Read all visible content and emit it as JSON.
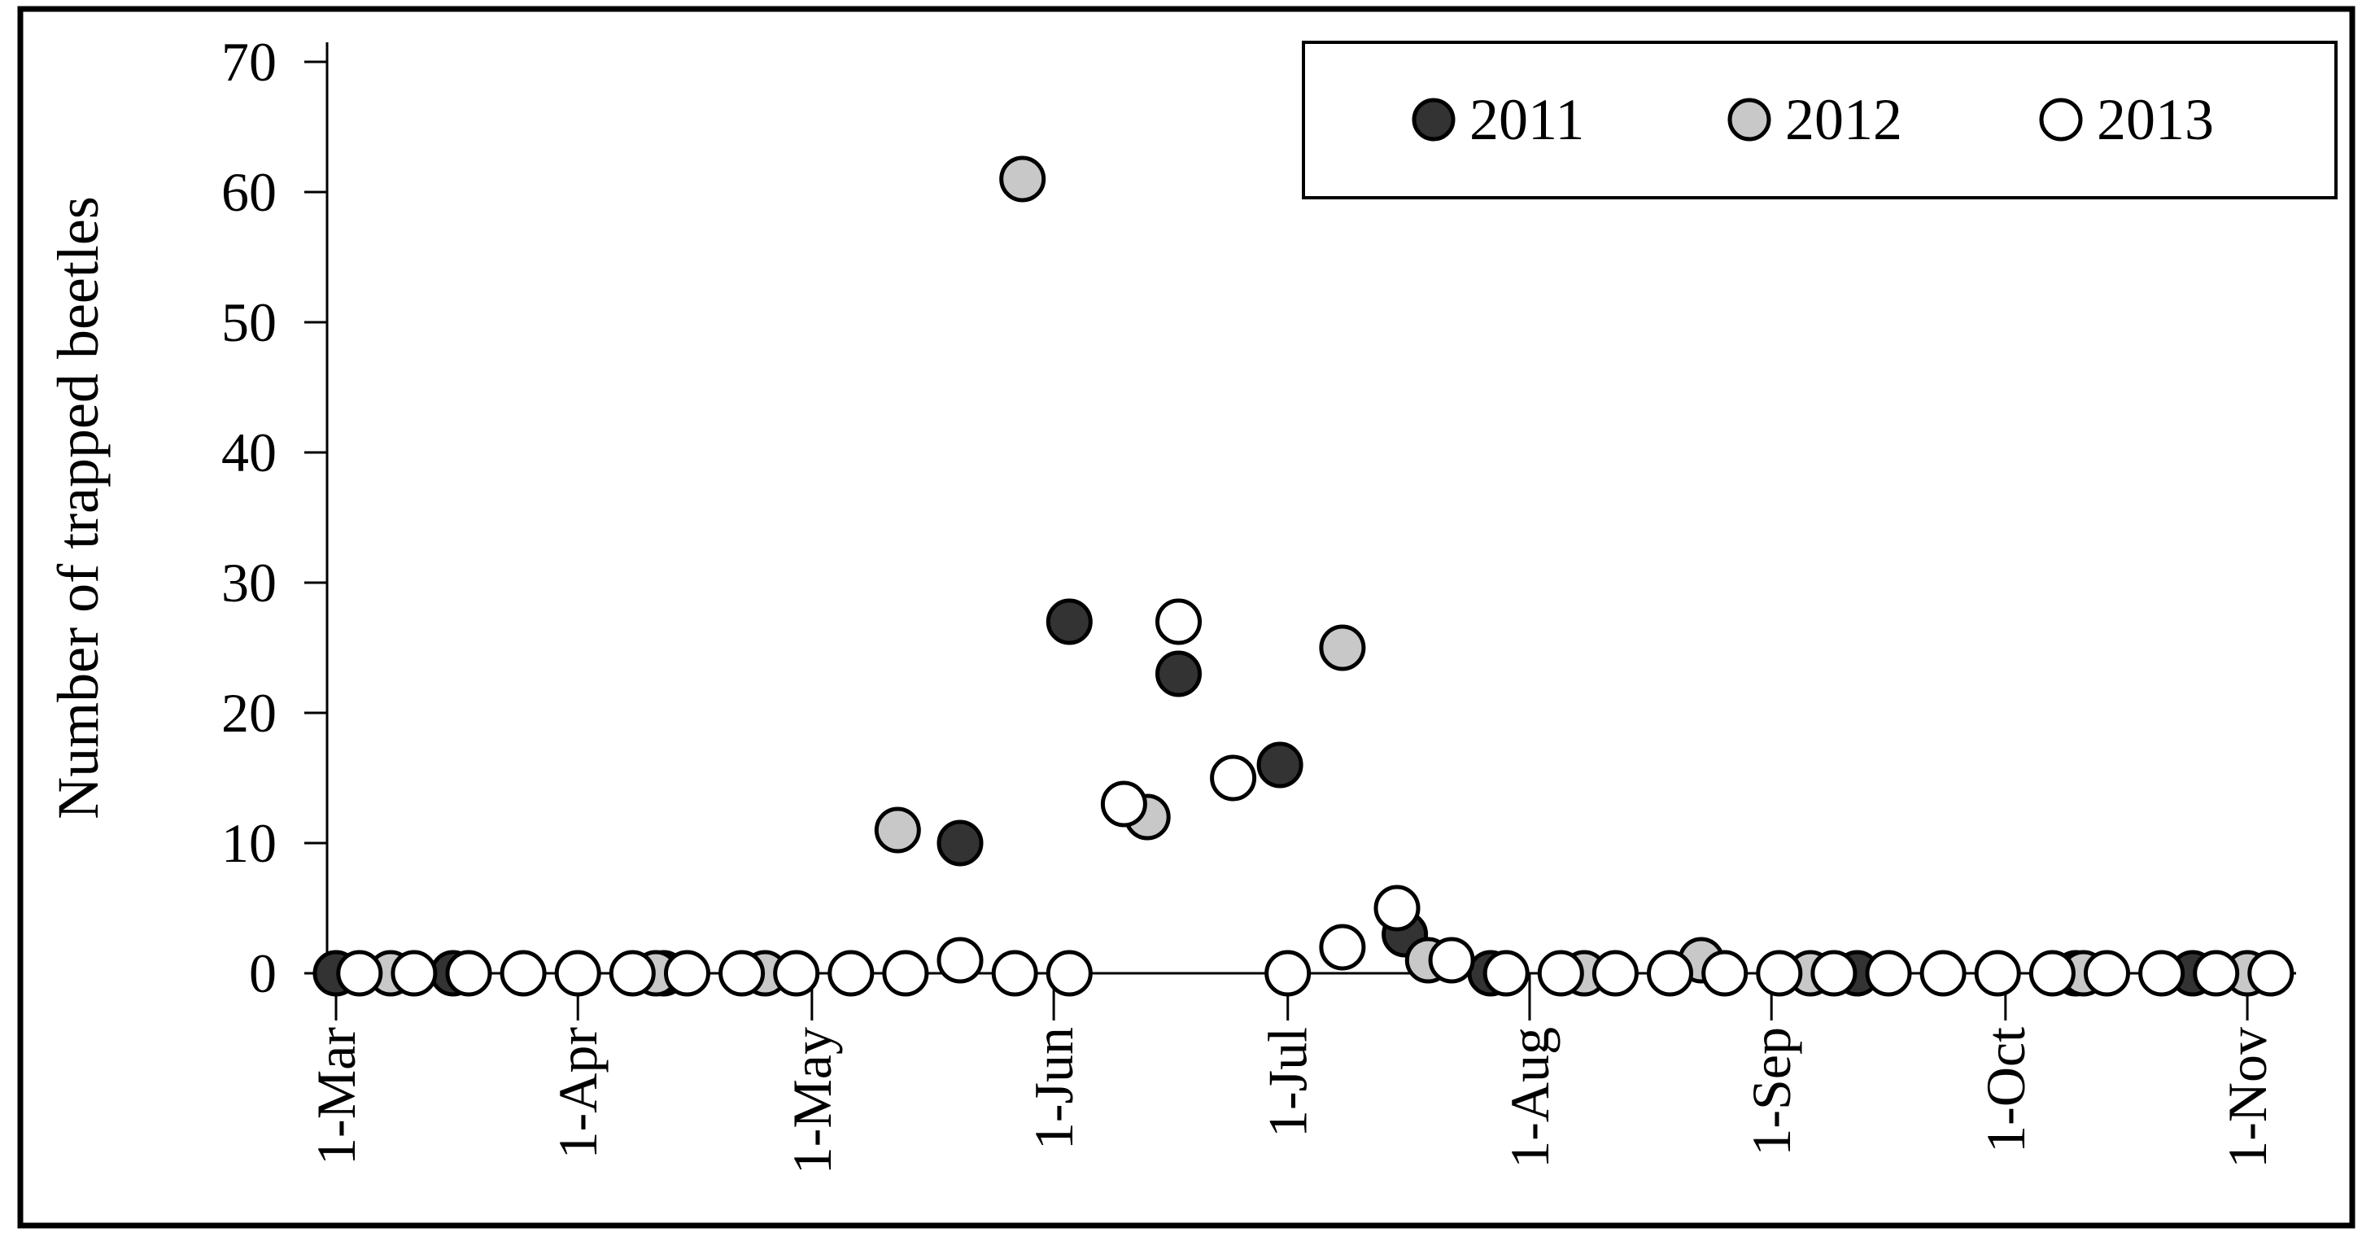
{
  "figure": {
    "background_color": "#ffffff",
    "border_color": "#000000"
  },
  "chart_data": {
    "type": "scatter",
    "title": "",
    "xlabel": "",
    "ylabel": "Number of trapped beetles",
    "grid": false,
    "legend_position": "top-right",
    "marker_shape": "circle",
    "y_ticks": [
      0,
      10,
      20,
      30,
      40,
      50,
      60,
      70
    ],
    "ylim": [
      0,
      70
    ],
    "x_ticks": {
      "labels": [
        "1-Mar",
        "1-Apr",
        "1-May",
        "1-Jun",
        "1-Jul",
        "1-Aug",
        "1-Sep",
        "1-Oct",
        "1-Nov"
      ],
      "day_offsets": [
        0,
        31,
        61,
        92,
        122,
        153,
        184,
        214,
        245
      ]
    },
    "xlim_days": [
      -2,
      252
    ],
    "point_format": [
      "date",
      "day_offset_from_1-Mar",
      "count"
    ],
    "series": [
      {
        "name": "2011",
        "fill": "#333333",
        "stroke": "#000000",
        "points": [
          [
            "1-Mar",
            0,
            0
          ],
          [
            "16-Mar",
            15,
            0
          ],
          [
            "12-Apr",
            42,
            0
          ],
          [
            "20-May",
            80,
            10
          ],
          [
            "3-Jun",
            94,
            27
          ],
          [
            "17-Jun",
            108,
            23
          ],
          [
            "30-Jun",
            121,
            16
          ],
          [
            "16-Jul",
            137,
            3
          ],
          [
            "27-Jul",
            148,
            0
          ],
          [
            "12-Sep",
            195,
            0
          ],
          [
            "10-Oct",
            223,
            0
          ],
          [
            "25-Oct",
            238,
            0
          ]
        ]
      },
      {
        "name": "2012",
        "fill": "#c8c8c8",
        "stroke": "#000000",
        "points": [
          [
            "8-Mar",
            7,
            0
          ],
          [
            "11-Apr",
            41,
            0
          ],
          [
            "25-Apr",
            55,
            0
          ],
          [
            "12-May",
            72,
            11
          ],
          [
            "28-May",
            88,
            61
          ],
          [
            "13-Jun",
            104,
            12
          ],
          [
            "8-Jul",
            129,
            25
          ],
          [
            "19-Jul",
            140,
            1
          ],
          [
            "8-Aug",
            160,
            0
          ],
          [
            "23-Aug",
            175,
            1
          ],
          [
            "6-Sep",
            189,
            0
          ],
          [
            "11-Oct",
            224,
            0
          ],
          [
            "1-Nov",
            245,
            0
          ]
        ]
      },
      {
        "name": "2013",
        "fill": "#ffffff",
        "stroke": "#000000",
        "points": [
          [
            "4-Mar",
            3,
            0
          ],
          [
            "11-Mar",
            10,
            0
          ],
          [
            "18-Mar",
            17,
            0
          ],
          [
            "25-Mar",
            24,
            0
          ],
          [
            "1-Apr",
            31,
            0
          ],
          [
            "8-Apr",
            38,
            0
          ],
          [
            "15-Apr",
            45,
            0
          ],
          [
            "22-Apr",
            52,
            0
          ],
          [
            "29-Apr",
            59,
            0
          ],
          [
            "6-May",
            66,
            0
          ],
          [
            "13-May",
            73,
            0
          ],
          [
            "20-May",
            80,
            1
          ],
          [
            "27-May",
            87,
            0
          ],
          [
            "3-Jun",
            94,
            0
          ],
          [
            "10-Jun",
            101,
            13
          ],
          [
            "17-Jun",
            108,
            27
          ],
          [
            "24-Jun",
            115,
            15
          ],
          [
            "1-Jul",
            122,
            0
          ],
          [
            "8-Jul",
            129,
            2
          ],
          [
            "15-Jul",
            136,
            5
          ],
          [
            "22-Jul",
            143,
            1
          ],
          [
            "29-Jul",
            150,
            0
          ],
          [
            "5-Aug",
            157,
            0
          ],
          [
            "12-Aug",
            164,
            0
          ],
          [
            "19-Aug",
            171,
            0
          ],
          [
            "26-Aug",
            178,
            0
          ],
          [
            "2-Sep",
            185,
            0
          ],
          [
            "9-Sep",
            192,
            0
          ],
          [
            "16-Sep",
            199,
            0
          ],
          [
            "23-Sep",
            206,
            0
          ],
          [
            "30-Sep",
            213,
            0
          ],
          [
            "7-Oct",
            220,
            0
          ],
          [
            "14-Oct",
            227,
            0
          ],
          [
            "21-Oct",
            234,
            0
          ],
          [
            "28-Oct",
            241,
            0
          ],
          [
            "4-Nov",
            248,
            0
          ]
        ]
      }
    ]
  }
}
